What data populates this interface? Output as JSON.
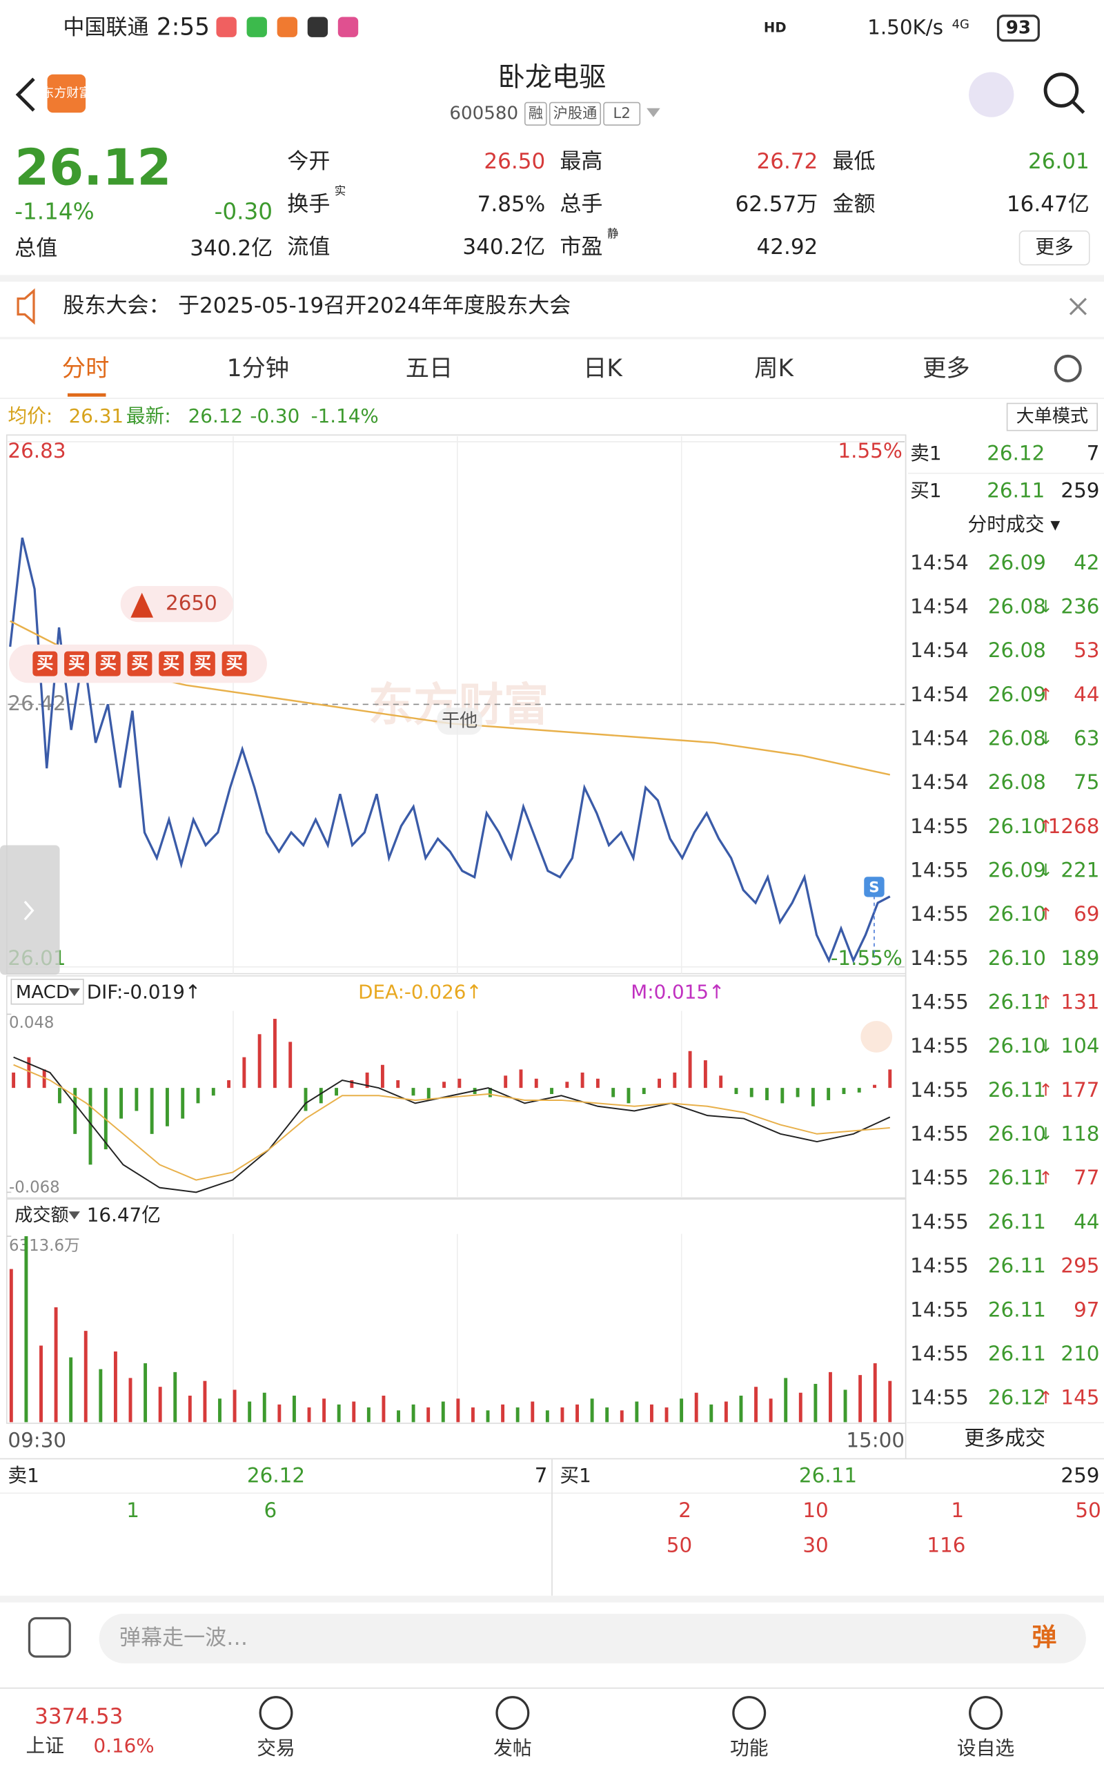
{
  "status": {
    "carrier": "中国联通",
    "time": "2:55",
    "hd": "HD",
    "speed": "1.50K/s",
    "network": "4G",
    "battery": "93"
  },
  "header": {
    "logo": "东方财富",
    "title": "卧龙电驱",
    "code": "600580",
    "tags": [
      "融",
      "沪股通",
      "L2"
    ]
  },
  "quote": {
    "price": "26.12",
    "pct": "-1.14%",
    "change": "-0.30",
    "market_cap": {
      "label": "总值",
      "value": "340.2亿"
    },
    "fields": [
      {
        "label": "今开",
        "value": "26.50",
        "color": "#d63a3a"
      },
      {
        "label": "最高",
        "value": "26.72",
        "color": "#d63a3a"
      },
      {
        "label": "最低",
        "value": "26.01",
        "color": "#3d9a2e"
      },
      {
        "label": "换手",
        "sup": "实",
        "value": "7.85%",
        "color": "#222222"
      },
      {
        "label": "总手",
        "value": "62.57万",
        "color": "#222222"
      },
      {
        "label": "金额",
        "value": "16.47亿",
        "color": "#222222"
      },
      {
        "label": "流值",
        "value": "340.2亿",
        "color": "#222222"
      },
      {
        "label": "市盈",
        "sup": "静",
        "value": "42.92",
        "color": "#222222"
      }
    ],
    "more": "更多"
  },
  "notice": {
    "label": "股东大会：",
    "text": "于2025-05-19召开2024年年度股东大会"
  },
  "tabs": [
    "分时",
    "1分钟",
    "五日",
    "日K",
    "周K",
    "更多"
  ],
  "info": {
    "avg_label": "均价:",
    "avg": "26.31",
    "last_label": "最新:",
    "last": "26.12",
    "change": "-0.30",
    "pct": "-1.14%",
    "mode": "大单模式"
  },
  "chart_data": [
    {
      "type": "line",
      "series": [
        {
          "color": "#3a5ba8",
          "values": [
            26.51,
            26.68,
            26.6,
            26.32,
            26.54,
            26.38,
            26.5,
            26.36,
            26.42,
            26.29,
            26.41,
            26.22,
            26.18,
            26.24,
            26.17,
            26.24,
            26.2,
            26.22,
            26.29,
            26.35,
            26.29,
            26.22,
            26.19,
            26.22,
            26.2,
            26.24,
            26.2,
            26.28,
            26.2,
            26.22,
            26.28,
            26.18,
            26.23,
            26.26,
            26.18,
            26.21,
            26.19,
            26.16,
            26.15,
            26.25,
            26.22,
            26.18,
            26.26,
            26.21,
            26.16,
            26.15,
            26.18,
            26.29,
            26.25,
            26.2,
            26.22,
            26.18,
            26.29,
            26.27,
            26.21,
            26.18,
            26.22,
            26.25,
            26.21,
            26.18,
            26.13,
            26.11,
            26.15,
            26.08,
            26.11,
            26.15,
            26.06,
            26.02,
            26.07,
            26.02,
            26.06,
            26.11,
            26.12
          ]
        },
        {
          "color": "#e8b04a",
          "values": [
            26.55,
            26.48,
            26.45,
            26.43,
            26.41,
            26.39,
            26.38,
            26.37,
            26.36,
            26.34,
            26.31
          ]
        }
      ],
      "ylim": [
        26.01,
        26.83
      ],
      "yticks": [
        26.83,
        26.42,
        26.01
      ],
      "y2lim": [
        -1.55,
        1.55
      ],
      "y2ticks": [
        {
          "value": 1.55,
          "label": "1.55%"
        },
        {
          "value": -1.55,
          "label": "-1.55%"
        }
      ],
      "big_order": "2650",
      "buy_marks": [
        "买",
        "买",
        "买",
        "买",
        "买",
        "买",
        "买"
      ],
      "note": "干他",
      "watermark": "东方财富",
      "marker": "S"
    },
    {
      "type": "macd",
      "indicator": "MACD",
      "dif": "DIF:-0.019↑",
      "dea": "DEA:-0.026↑",
      "m": "M:0.015↑",
      "ylim": [
        -0.068,
        0.048
      ],
      "yticks": [
        0.048,
        -0.068
      ],
      "bars": [
        0.01,
        0.02,
        0.012,
        -0.01,
        -0.03,
        -0.05,
        -0.04,
        -0.02,
        -0.015,
        -0.03,
        -0.025,
        -0.02,
        -0.01,
        -0.005,
        0.005,
        0.02,
        0.035,
        0.045,
        0.03,
        -0.015,
        -0.01,
        -0.005,
        0.005,
        0.01,
        0.015,
        0.005,
        -0.005,
        -0.008,
        0.004,
        0.006,
        -0.004,
        -0.006,
        0.008,
        0.012,
        0.006,
        -0.004,
        0.004,
        0.01,
        0.006,
        -0.006,
        -0.01,
        -0.004,
        0.006,
        0.01,
        0.024,
        0.018,
        0.008,
        -0.004,
        -0.006,
        -0.008,
        -0.01,
        -0.006,
        -0.012,
        -0.008,
        -0.004,
        -0.003,
        0.002,
        0.012
      ],
      "up_color": "#d63a3a",
      "down_color": "#3d9a2e",
      "series": [
        {
          "color": "#222222",
          "values": [
            0.02,
            0.01,
            -0.02,
            -0.05,
            -0.065,
            -0.068,
            -0.06,
            -0.04,
            -0.01,
            0.005,
            0.0,
            -0.01,
            -0.005,
            0.0,
            -0.01,
            -0.005,
            -0.012,
            -0.015,
            -0.01,
            -0.018,
            -0.02,
            -0.03,
            -0.035,
            -0.03,
            -0.019
          ]
        },
        {
          "color": "#e8b04a",
          "values": [
            0.015,
            0.005,
            -0.01,
            -0.03,
            -0.05,
            -0.06,
            -0.055,
            -0.04,
            -0.02,
            -0.005,
            -0.005,
            -0.008,
            -0.006,
            -0.004,
            -0.008,
            -0.008,
            -0.01,
            -0.012,
            -0.01,
            -0.012,
            -0.016,
            -0.024,
            -0.03,
            -0.028,
            -0.026
          ]
        }
      ]
    },
    {
      "type": "bar",
      "title": "成交额",
      "total": "16.47亿",
      "ylim": [
        0,
        6313.6
      ],
      "yticks": [
        {
          "value": 6313.6,
          "label": "6313.6万"
        }
      ],
      "values": [
        5200,
        6313.6,
        2600,
        3900,
        2200,
        3100,
        1800,
        2400,
        1500,
        2000,
        1200,
        1700,
        900,
        1400,
        800,
        1100,
        700,
        1000,
        600,
        900,
        500,
        800,
        600,
        700,
        500,
        900,
        400,
        600,
        500,
        700,
        800,
        500,
        400,
        600,
        500,
        700,
        400,
        500,
        600,
        800,
        500,
        400,
        700,
        600,
        500,
        800,
        1000,
        600,
        700,
        900,
        1200,
        800,
        1500,
        1000,
        1300,
        1700,
        1100,
        1600,
        2000,
        1400
      ],
      "up": [
        1,
        0,
        1,
        1,
        0,
        1,
        0,
        1,
        1,
        0,
        1,
        0,
        1,
        1,
        0,
        1,
        0,
        0,
        1,
        0,
        1,
        1,
        0,
        1,
        0,
        1,
        0,
        0,
        1,
        0,
        1,
        1,
        0,
        1,
        0,
        1,
        0,
        1,
        1,
        0,
        0,
        1,
        0,
        1,
        1,
        0,
        1,
        0,
        1,
        0,
        1,
        1,
        0,
        1,
        0,
        1,
        0,
        1,
        1,
        1
      ],
      "up_color": "#d63a3a",
      "down_color": "#3d9a2e",
      "xlabels": [
        "09:30",
        "15:00"
      ]
    }
  ],
  "ticker": {
    "ask": {
      "label": "卖1",
      "price": "26.12",
      "vol": "7"
    },
    "bid": {
      "label": "买1",
      "price": "26.11",
      "vol": "259"
    },
    "title": "分时成交 ▾",
    "trades": [
      {
        "time": "14:54",
        "price": "26.09",
        "vol": "42",
        "side": "sell"
      },
      {
        "time": "14:54",
        "price": "26.08",
        "dir": "↓",
        "vol": "236",
        "side": "sell"
      },
      {
        "time": "14:54",
        "price": "26.08",
        "vol": "53",
        "side": "buy"
      },
      {
        "time": "14:54",
        "price": "26.09",
        "dir": "↑",
        "vol": "44",
        "side": "buy"
      },
      {
        "time": "14:54",
        "price": "26.08",
        "dir": "↓",
        "vol": "63",
        "side": "sell"
      },
      {
        "time": "14:54",
        "price": "26.08",
        "vol": "75",
        "side": "sell"
      },
      {
        "time": "14:55",
        "price": "26.10",
        "dir": "↑",
        "vol": "1268",
        "side": "buy"
      },
      {
        "time": "14:55",
        "price": "26.09",
        "dir": "↓",
        "vol": "221",
        "side": "sell"
      },
      {
        "time": "14:55",
        "price": "26.10",
        "dir": "↑",
        "vol": "69",
        "side": "buy"
      },
      {
        "time": "14:55",
        "price": "26.10",
        "vol": "189",
        "side": "sell"
      },
      {
        "time": "14:55",
        "price": "26.11",
        "dir": "↑",
        "vol": "131",
        "side": "buy"
      },
      {
        "time": "14:55",
        "price": "26.10",
        "dir": "↓",
        "vol": "104",
        "side": "sell"
      },
      {
        "time": "14:55",
        "price": "26.11",
        "dir": "↑",
        "vol": "177",
        "side": "buy"
      },
      {
        "time": "14:55",
        "price": "26.10",
        "dir": "↓",
        "vol": "118",
        "side": "sell"
      },
      {
        "time": "14:55",
        "price": "26.11",
        "dir": "↑",
        "vol": "77",
        "side": "buy"
      },
      {
        "time": "14:55",
        "price": "26.11",
        "vol": "44",
        "side": "sell"
      },
      {
        "time": "14:55",
        "price": "26.11",
        "vol": "295",
        "side": "buy"
      },
      {
        "time": "14:55",
        "price": "26.11",
        "vol": "97",
        "side": "buy"
      },
      {
        "time": "14:55",
        "price": "26.11",
        "vol": "210",
        "side": "sell"
      },
      {
        "time": "14:55",
        "price": "26.12",
        "dir": "↑",
        "vol": "145",
        "side": "buy"
      }
    ],
    "more": "更多成交"
  },
  "book": {
    "ask_label": "卖1",
    "ask_price": "26.12",
    "ask_vol": "7",
    "ask_orders": [
      "1",
      "6"
    ],
    "bid_label": "买1",
    "bid_price": "26.11",
    "bid_vol": "259",
    "bid_orders": [
      "2",
      "10",
      "1",
      "50",
      "50",
      "30",
      "116"
    ]
  },
  "footer": {
    "placeholder": "弹幕走一波…",
    "danmu": "弹",
    "index": "3374.53",
    "index_name": "上证",
    "index_pct": "0.16%",
    "items": [
      "交易",
      "发帖",
      "功能",
      "设自选"
    ]
  }
}
